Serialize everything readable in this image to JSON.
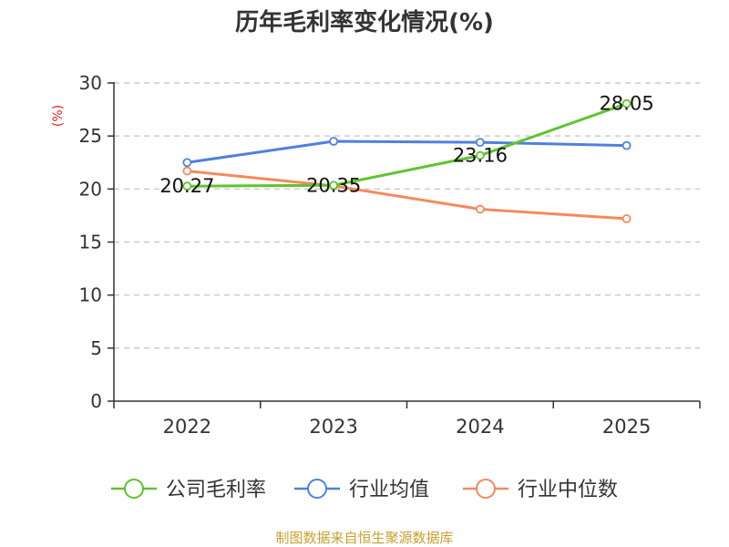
{
  "chart_data": {
    "type": "line",
    "title": "历年毛利率变化情况(%)",
    "y_unit_label": "(%)",
    "categories": [
      "2022",
      "2023",
      "2024",
      "2025"
    ],
    "ylim": [
      0,
      30
    ],
    "yticks": [
      "0",
      "5",
      "10",
      "15",
      "20",
      "25",
      "30"
    ],
    "grid": true,
    "legend_position": "bottom",
    "series": [
      {
        "name": "公司毛利率",
        "color": "#5ec42f",
        "values": [
          20.27,
          20.35,
          23.16,
          28.05
        ],
        "labels": [
          "20.27",
          "20.35",
          "23.16",
          "28.05"
        ]
      },
      {
        "name": "行业均值",
        "color": "#4f80e0",
        "values": [
          22.5,
          24.5,
          24.4,
          24.1
        ]
      },
      {
        "name": "行业中位数",
        "color": "#f5895a",
        "values": [
          21.7,
          20.3,
          18.1,
          17.2
        ]
      }
    ]
  },
  "footer": {
    "source": "制图数据来自恒生聚源数据库"
  }
}
